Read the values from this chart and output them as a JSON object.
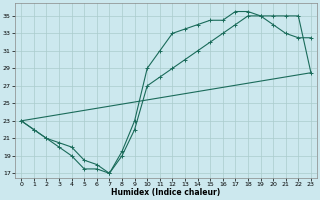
{
  "xlabel": "Humidex (Indice chaleur)",
  "bg_color": "#cce8ee",
  "grid_color": "#aacccc",
  "line_color": "#1a6b5a",
  "xlim": [
    -0.5,
    23.5
  ],
  "ylim": [
    16.5,
    36.5
  ],
  "yticks": [
    17,
    19,
    21,
    23,
    25,
    27,
    29,
    31,
    33,
    35
  ],
  "xticks": [
    0,
    1,
    2,
    3,
    4,
    5,
    6,
    7,
    8,
    9,
    10,
    11,
    12,
    13,
    14,
    15,
    16,
    17,
    18,
    19,
    20,
    21,
    22,
    23
  ],
  "curve1_x": [
    0,
    1,
    2,
    3,
    4,
    5,
    6,
    7,
    8,
    9,
    10,
    11,
    12,
    13,
    14,
    15,
    16,
    17,
    18,
    19,
    20,
    21,
    22,
    23
  ],
  "curve1_y": [
    23,
    22,
    21,
    20,
    19,
    17.5,
    17.5,
    17,
    19.5,
    23,
    29,
    31,
    33,
    33.5,
    34,
    34.5,
    34.5,
    35.5,
    35.5,
    35,
    34,
    33,
    32.5,
    32.5
  ],
  "curve2_x": [
    0,
    1,
    2,
    3,
    4,
    5,
    6,
    7,
    8,
    9,
    10,
    11,
    12,
    13,
    14,
    15,
    16,
    17,
    18,
    19,
    20,
    21,
    22,
    23
  ],
  "curve2_y": [
    23,
    22,
    21,
    20.5,
    20,
    18.5,
    18,
    17,
    19,
    22,
    27,
    28,
    29,
    30,
    31,
    32,
    33,
    34,
    35,
    35,
    35,
    35,
    35,
    28.5
  ],
  "line3_x": [
    0,
    23
  ],
  "line3_y": [
    23,
    28.5
  ]
}
